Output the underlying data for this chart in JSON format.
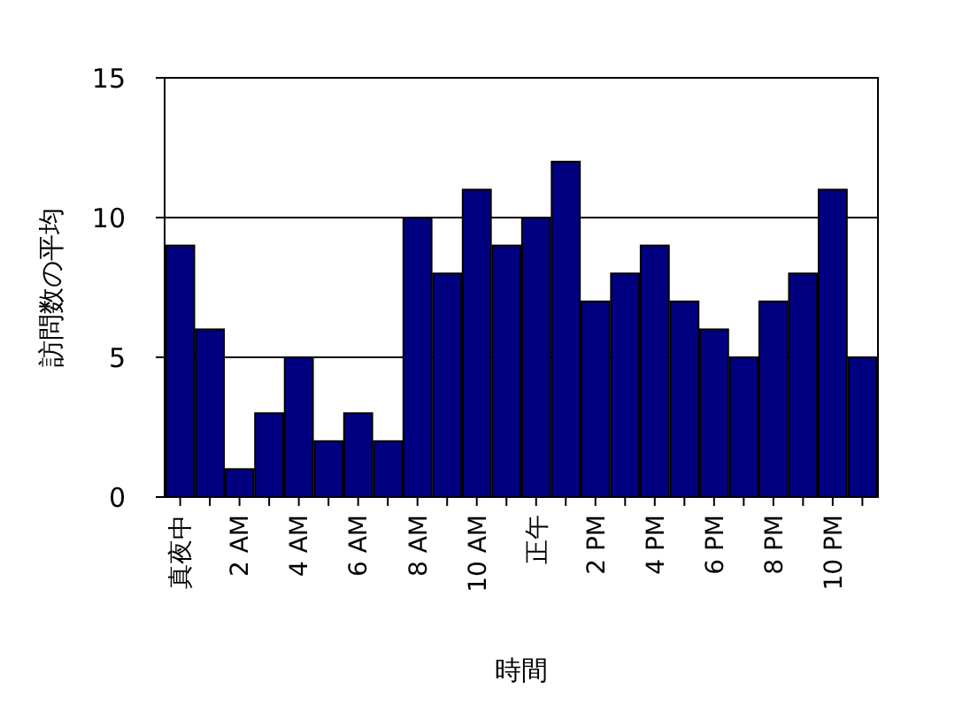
{
  "chart_data": {
    "type": "bar",
    "xlabel": "時間",
    "ylabel": "訪問数の平均",
    "categories": [
      "真夜中",
      null,
      "2 AM",
      null,
      "4 AM",
      null,
      "6 AM",
      null,
      "8 AM",
      null,
      "10 AM",
      null,
      "正午",
      null,
      "2 PM",
      null,
      "4 PM",
      null,
      "6 PM",
      null,
      "8 PM",
      null,
      "10 PM",
      null
    ],
    "values": [
      9,
      6,
      1,
      3,
      5,
      2,
      3,
      2,
      10,
      8,
      11,
      9,
      10,
      12,
      7,
      8,
      9,
      7,
      6,
      5,
      7,
      8,
      11,
      5
    ],
    "color": "#000080",
    "ylim": [
      0,
      15
    ],
    "yticks": [
      0,
      5,
      10,
      15
    ],
    "grid": "y"
  }
}
